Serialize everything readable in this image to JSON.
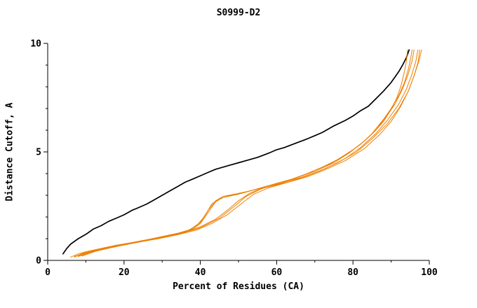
{
  "chart_data": {
    "type": "line",
    "title": "S0999-D2",
    "xlabel": "Percent of Residues (CA)",
    "ylabel": "Distance Cutoff, A",
    "xlim": [
      0,
      100
    ],
    "ylim": [
      0,
      10
    ],
    "x_major_ticks": [
      0,
      20,
      40,
      60,
      80,
      100
    ],
    "x_minor_step": 10,
    "y_major_ticks": [
      0,
      5,
      10
    ],
    "y_minor_step": 1,
    "grid": false,
    "legend": "none",
    "colors": {
      "reference": "#000000",
      "models": "#ee7f00"
    },
    "series": [
      {
        "name": "reference-black",
        "color": "#000000",
        "width": 1.7,
        "points": [
          [
            4,
            0.3
          ],
          [
            5,
            0.55
          ],
          [
            6,
            0.75
          ],
          [
            8,
            1.0
          ],
          [
            10,
            1.2
          ],
          [
            12,
            1.45
          ],
          [
            14,
            1.6
          ],
          [
            16,
            1.8
          ],
          [
            18,
            1.95
          ],
          [
            20,
            2.1
          ],
          [
            22,
            2.3
          ],
          [
            24,
            2.45
          ],
          [
            26,
            2.6
          ],
          [
            28,
            2.8
          ],
          [
            30,
            3.0
          ],
          [
            32,
            3.2
          ],
          [
            34,
            3.4
          ],
          [
            36,
            3.6
          ],
          [
            38,
            3.75
          ],
          [
            40,
            3.9
          ],
          [
            42,
            4.05
          ],
          [
            44,
            4.2
          ],
          [
            46,
            4.3
          ],
          [
            48,
            4.4
          ],
          [
            50,
            4.5
          ],
          [
            52,
            4.6
          ],
          [
            55,
            4.75
          ],
          [
            58,
            4.95
          ],
          [
            60,
            5.1
          ],
          [
            62,
            5.2
          ],
          [
            65,
            5.4
          ],
          [
            68,
            5.6
          ],
          [
            70,
            5.75
          ],
          [
            72,
            5.9
          ],
          [
            75,
            6.2
          ],
          [
            78,
            6.45
          ],
          [
            80,
            6.65
          ],
          [
            82,
            6.9
          ],
          [
            84,
            7.1
          ],
          [
            86,
            7.45
          ],
          [
            88,
            7.8
          ],
          [
            90,
            8.2
          ],
          [
            91,
            8.45
          ],
          [
            92,
            8.7
          ],
          [
            93,
            9.0
          ],
          [
            94,
            9.35
          ],
          [
            94.7,
            9.7
          ]
        ]
      },
      {
        "name": "model-orange-1",
        "color": "#ee7f00",
        "width": 1,
        "points": [
          [
            6,
            0.15
          ],
          [
            8,
            0.3
          ],
          [
            10,
            0.4
          ],
          [
            14,
            0.55
          ],
          [
            18,
            0.7
          ],
          [
            22,
            0.82
          ],
          [
            26,
            0.95
          ],
          [
            30,
            1.1
          ],
          [
            34,
            1.25
          ],
          [
            37,
            1.4
          ],
          [
            39,
            1.6
          ],
          [
            41,
            2.0
          ],
          [
            43,
            2.6
          ],
          [
            45,
            2.85
          ],
          [
            48,
            3.0
          ],
          [
            52,
            3.15
          ],
          [
            56,
            3.35
          ],
          [
            60,
            3.55
          ],
          [
            64,
            3.75
          ],
          [
            68,
            4.0
          ],
          [
            72,
            4.3
          ],
          [
            76,
            4.65
          ],
          [
            80,
            5.1
          ],
          [
            83,
            5.5
          ],
          [
            86,
            6.0
          ],
          [
            88,
            6.4
          ],
          [
            90,
            6.95
          ],
          [
            91.5,
            7.5
          ],
          [
            92.5,
            8.0
          ],
          [
            93.5,
            8.7
          ],
          [
            94,
            9.2
          ],
          [
            94.3,
            9.7
          ]
        ]
      },
      {
        "name": "model-orange-2",
        "color": "#ee7f00",
        "width": 1,
        "points": [
          [
            7,
            0.15
          ],
          [
            9,
            0.32
          ],
          [
            12,
            0.45
          ],
          [
            16,
            0.6
          ],
          [
            20,
            0.75
          ],
          [
            25,
            0.92
          ],
          [
            30,
            1.08
          ],
          [
            35,
            1.28
          ],
          [
            38,
            1.45
          ],
          [
            40,
            1.7
          ],
          [
            42,
            2.2
          ],
          [
            44,
            2.7
          ],
          [
            46,
            2.9
          ],
          [
            50,
            3.05
          ],
          [
            54,
            3.25
          ],
          [
            58,
            3.45
          ],
          [
            62,
            3.6
          ],
          [
            66,
            3.85
          ],
          [
            70,
            4.15
          ],
          [
            74,
            4.45
          ],
          [
            78,
            4.85
          ],
          [
            82,
            5.35
          ],
          [
            85,
            5.85
          ],
          [
            88,
            6.5
          ],
          [
            90,
            7.0
          ],
          [
            92,
            7.6
          ],
          [
            93.5,
            8.2
          ],
          [
            94.5,
            8.8
          ],
          [
            95.2,
            9.4
          ],
          [
            95.5,
            9.7
          ]
        ]
      },
      {
        "name": "model-orange-3",
        "color": "#ee7f00",
        "width": 1,
        "points": [
          [
            8,
            0.2
          ],
          [
            11,
            0.38
          ],
          [
            15,
            0.55
          ],
          [
            20,
            0.72
          ],
          [
            26,
            0.92
          ],
          [
            31,
            1.1
          ],
          [
            36,
            1.3
          ],
          [
            40,
            1.55
          ],
          [
            44,
            1.9
          ],
          [
            47,
            2.3
          ],
          [
            50,
            2.75
          ],
          [
            53,
            3.1
          ],
          [
            56,
            3.3
          ],
          [
            60,
            3.5
          ],
          [
            65,
            3.8
          ],
          [
            70,
            4.1
          ],
          [
            75,
            4.5
          ],
          [
            79,
            4.95
          ],
          [
            83,
            5.5
          ],
          [
            86,
            6.0
          ],
          [
            89,
            6.7
          ],
          [
            91,
            7.2
          ],
          [
            93,
            7.9
          ],
          [
            94.5,
            8.6
          ],
          [
            95.5,
            9.2
          ],
          [
            96,
            9.7
          ]
        ]
      },
      {
        "name": "model-orange-4",
        "color": "#ee7f00",
        "width": 1,
        "points": [
          [
            7,
            0.18
          ],
          [
            10,
            0.35
          ],
          [
            14,
            0.5
          ],
          [
            19,
            0.68
          ],
          [
            24,
            0.85
          ],
          [
            29,
            1.0
          ],
          [
            34,
            1.18
          ],
          [
            39,
            1.4
          ],
          [
            43,
            1.7
          ],
          [
            47,
            2.1
          ],
          [
            51,
            2.65
          ],
          [
            54,
            3.05
          ],
          [
            58,
            3.35
          ],
          [
            63,
            3.6
          ],
          [
            68,
            3.9
          ],
          [
            73,
            4.25
          ],
          [
            78,
            4.7
          ],
          [
            82,
            5.2
          ],
          [
            86,
            5.85
          ],
          [
            89,
            6.45
          ],
          [
            92,
            7.2
          ],
          [
            94,
            7.9
          ],
          [
            95.5,
            8.6
          ],
          [
            96.5,
            9.2
          ],
          [
            97,
            9.7
          ]
        ]
      },
      {
        "name": "model-orange-5",
        "color": "#ee7f00",
        "width": 1,
        "points": [
          [
            9,
            0.2
          ],
          [
            13,
            0.45
          ],
          [
            18,
            0.65
          ],
          [
            23,
            0.82
          ],
          [
            28,
            1.0
          ],
          [
            33,
            1.18
          ],
          [
            37,
            1.38
          ],
          [
            40,
            1.75
          ],
          [
            42,
            2.3
          ],
          [
            44,
            2.75
          ],
          [
            46,
            2.95
          ],
          [
            49,
            3.05
          ],
          [
            53,
            3.2
          ],
          [
            58,
            3.4
          ],
          [
            63,
            3.6
          ],
          [
            68,
            3.85
          ],
          [
            73,
            4.2
          ],
          [
            78,
            4.6
          ],
          [
            83,
            5.15
          ],
          [
            87,
            5.8
          ],
          [
            90,
            6.4
          ],
          [
            92.5,
            7.1
          ],
          [
            94.5,
            7.8
          ],
          [
            96,
            8.5
          ],
          [
            97,
            9.1
          ],
          [
            97.5,
            9.7
          ]
        ]
      },
      {
        "name": "model-orange-6",
        "color": "#ee7f00",
        "width": 1,
        "points": [
          [
            8,
            0.18
          ],
          [
            12,
            0.4
          ],
          [
            17,
            0.6
          ],
          [
            22,
            0.78
          ],
          [
            28,
            0.98
          ],
          [
            34,
            1.2
          ],
          [
            40,
            1.5
          ],
          [
            45,
            1.95
          ],
          [
            49,
            2.5
          ],
          [
            52,
            2.95
          ],
          [
            56,
            3.3
          ],
          [
            61,
            3.55
          ],
          [
            66,
            3.8
          ],
          [
            71,
            4.1
          ],
          [
            76,
            4.5
          ],
          [
            81,
            5.0
          ],
          [
            85,
            5.6
          ],
          [
            89,
            6.3
          ],
          [
            92,
            7.0
          ],
          [
            94.5,
            7.8
          ],
          [
            96,
            8.5
          ],
          [
            97.3,
            9.2
          ],
          [
            98,
            9.7
          ]
        ]
      }
    ]
  }
}
